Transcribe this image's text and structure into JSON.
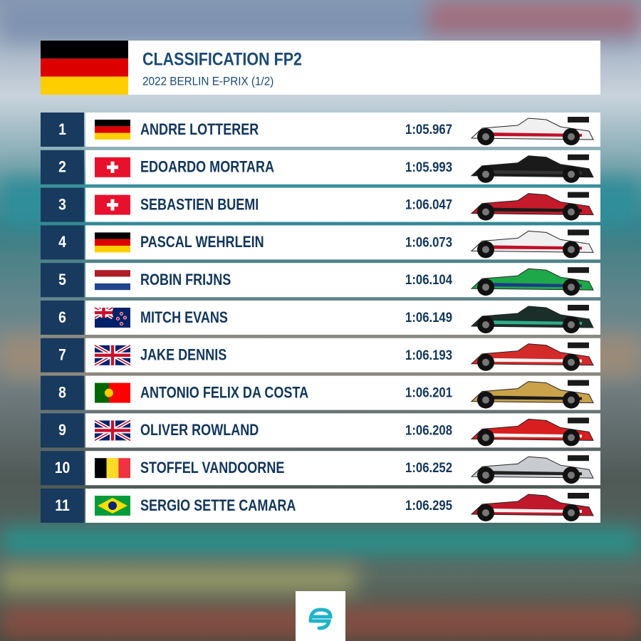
{
  "header": {
    "title": "CLASSIFICATION FP2",
    "subtitle": "2022 BERLIN E-PRIX (1/2)"
  },
  "table": {
    "rows": [
      {
        "position": 1,
        "driver": "ANDRE LOTTERER",
        "time": "1:05.967"
      },
      {
        "position": 2,
        "driver": "EDOARDO MORTARA",
        "time": "1:05.993"
      },
      {
        "position": 3,
        "driver": "SEBASTIEN BUEMI",
        "time": "1:06.047"
      },
      {
        "position": 4,
        "driver": "PASCAL WEHRLEIN",
        "time": "1:06.073"
      },
      {
        "position": 5,
        "driver": "ROBIN FRIJNS",
        "time": "1:06.104"
      },
      {
        "position": 6,
        "driver": "MITCH EVANS",
        "time": "1:06.149"
      },
      {
        "position": 7,
        "driver": "JAKE DENNIS",
        "time": "1:06.193"
      },
      {
        "position": 8,
        "driver": "ANTONIO FELIX DA COSTA",
        "time": "1:06.201"
      },
      {
        "position": 9,
        "driver": "OLIVER ROWLAND",
        "time": "1:06.208"
      },
      {
        "position": 10,
        "driver": "STOFFEL VANDOORNE",
        "time": "1:06.252"
      },
      {
        "position": 11,
        "driver": "SERGIO SETTE CAMARA",
        "time": "1:06.295"
      }
    ]
  }
}
